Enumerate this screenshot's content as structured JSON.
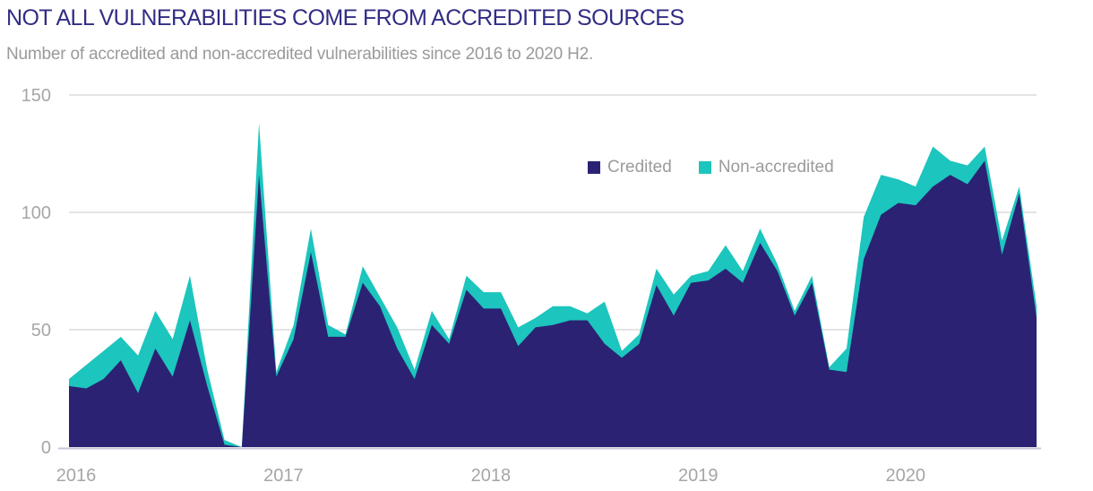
{
  "header": {
    "title": "NOT ALL VULNERABILITIES COME FROM ACCREDITED SOURCES",
    "subtitle": "Number of accredited and non-accredited vulnerabilities since 2016 to 2020 H2."
  },
  "colors": {
    "title": "#312d84",
    "credited": "#2b2274",
    "non_accredited": "#1cc5bd",
    "gridline": "#dcdcdc",
    "axis_line": "#c7c5d9",
    "tick_text": "#a6a6a6"
  },
  "chart_data": {
    "type": "area",
    "stacked": true,
    "title": "NOT ALL VULNERABILITIES COME FROM ACCREDITED SOURCES",
    "subtitle": "Number of accredited and non-accredited vulnerabilities since 2016 to 2020 H2.",
    "grid": "horizontal",
    "legend_position": "inside-top-right",
    "ylim": [
      0,
      150
    ],
    "yticks": [
      0,
      50,
      100,
      150
    ],
    "xticks": [
      "2016",
      "2017",
      "2018",
      "2019",
      "2020"
    ],
    "x": [
      "Jan 2016",
      "Feb 2016",
      "Mar 2016",
      "Apr 2016",
      "May 2016",
      "Jun 2016",
      "Jul 2016",
      "Aug 2016",
      "Sep 2016",
      "Oct 2016",
      "Nov 2016",
      "Dec 2016",
      "Jan 2017",
      "Feb 2017",
      "Mar 2017",
      "Apr 2017",
      "May 2017",
      "Jun 2017",
      "Jul 2017",
      "Aug 2017",
      "Sep 2017",
      "Oct 2017",
      "Nov 2017",
      "Dec 2017",
      "Jan 2018",
      "Feb 2018",
      "Mar 2018",
      "Apr 2018",
      "May 2018",
      "Jun 2018",
      "Jul 2018",
      "Aug 2018",
      "Sep 2018",
      "Oct 2018",
      "Nov 2018",
      "Dec 2018",
      "Jan 2019",
      "Feb 2019",
      "Mar 2019",
      "Apr 2019",
      "May 2019",
      "Jun 2019",
      "Jul 2019",
      "Aug 2019",
      "Sep 2019",
      "Oct 2019",
      "Nov 2019",
      "Dec 2019",
      "Jan 2020",
      "Feb 2020",
      "Mar 2020",
      "Apr 2020",
      "May 2020",
      "Jun 2020",
      "Jul 2020",
      "Aug 2020",
      "Sep 2020"
    ],
    "series": [
      {
        "name": "Credited",
        "color": "#2b2274",
        "values": [
          26,
          25,
          29,
          37,
          23,
          42,
          30,
          54,
          26,
          1,
          0,
          116,
          30,
          46,
          83,
          47,
          47,
          70,
          60,
          42,
          29,
          52,
          44,
          67,
          59,
          59,
          43,
          51,
          52,
          54,
          54,
          44,
          38,
          44,
          69,
          56,
          70,
          71,
          76,
          70,
          87,
          75,
          56,
          70,
          33,
          32,
          80,
          99,
          104,
          103,
          111,
          116,
          112,
          122,
          82,
          108,
          55
        ]
      },
      {
        "name": "Non-accredited",
        "color": "#1cc5bd",
        "values": [
          3,
          10,
          12,
          10,
          16,
          16,
          16,
          19,
          7,
          2,
          0,
          22,
          2,
          6,
          10,
          5,
          1,
          7,
          4,
          9,
          4,
          6,
          2,
          6,
          7,
          7,
          8,
          4,
          8,
          6,
          3,
          18,
          3,
          4,
          7,
          9,
          3,
          4,
          10,
          5,
          6,
          3,
          2,
          3,
          1,
          10,
          18,
          17,
          10,
          8,
          17,
          6,
          8,
          6,
          6,
          3,
          5
        ]
      }
    ]
  }
}
